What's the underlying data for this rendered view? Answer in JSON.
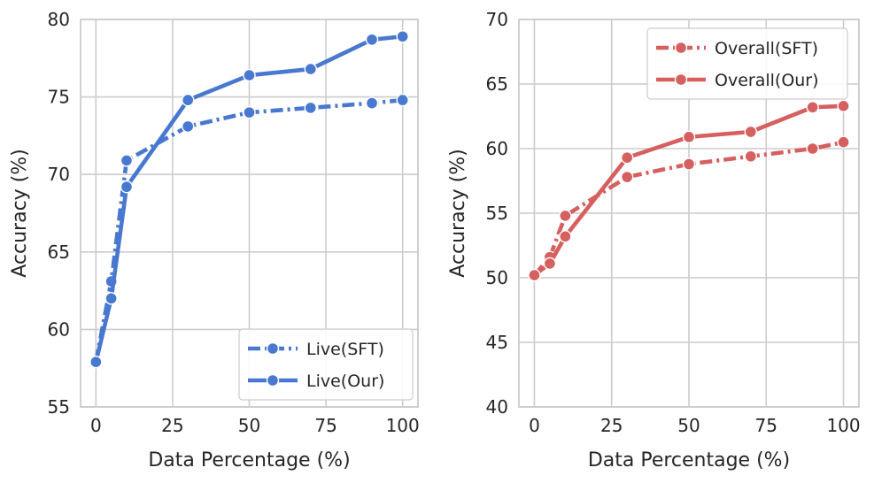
{
  "chart_data": [
    {
      "type": "line",
      "xlabel": "Data Percentage (%)",
      "ylabel": "Accuracy (%)",
      "xlim": [
        -5,
        105
      ],
      "ylim": [
        55,
        80
      ],
      "xticks": [
        0,
        25,
        50,
        75,
        100
      ],
      "yticks": [
        55,
        60,
        65,
        70,
        75,
        80
      ],
      "grid": true,
      "legend_position": "bottom-right",
      "color": "#4878cf",
      "series": [
        {
          "name": "Live(SFT)",
          "style": "dashdot",
          "x": [
            0,
            5,
            10,
            30,
            50,
            70,
            90,
            100
          ],
          "y": [
            57.9,
            63.1,
            70.9,
            73.1,
            74.0,
            74.3,
            74.6,
            74.8
          ]
        },
        {
          "name": "Live(Our)",
          "style": "solid",
          "x": [
            0,
            5,
            10,
            30,
            50,
            70,
            90,
            100
          ],
          "y": [
            57.9,
            62.0,
            69.2,
            74.8,
            76.4,
            76.8,
            78.7,
            78.9
          ]
        }
      ]
    },
    {
      "type": "line",
      "xlabel": "Data Percentage (%)",
      "ylabel": "Accuracy (%)",
      "xlim": [
        -5,
        105
      ],
      "ylim": [
        40,
        70
      ],
      "xticks": [
        0,
        25,
        50,
        75,
        100
      ],
      "yticks": [
        40,
        45,
        50,
        55,
        60,
        65,
        70
      ],
      "grid": true,
      "legend_position": "top-right",
      "color": "#d65f5f",
      "series": [
        {
          "name": "Overall(SFT)",
          "style": "dashdot",
          "x": [
            0,
            5,
            10,
            30,
            50,
            70,
            90,
            100
          ],
          "y": [
            50.2,
            51.6,
            54.8,
            57.8,
            58.8,
            59.4,
            60.0,
            60.5
          ]
        },
        {
          "name": "Overall(Our)",
          "style": "solid",
          "x": [
            0,
            5,
            10,
            30,
            50,
            70,
            90,
            100
          ],
          "y": [
            50.2,
            51.1,
            53.2,
            59.3,
            60.9,
            61.3,
            63.2,
            63.3
          ]
        }
      ]
    }
  ]
}
